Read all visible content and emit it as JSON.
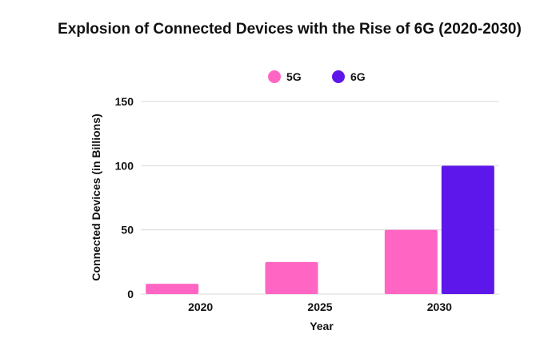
{
  "chart_data": {
    "type": "bar",
    "title": "Explosion of Connected Devices with the Rise of 6G (2020-2030)",
    "xlabel": "Year",
    "ylabel": "Connected Devices (in Billions)",
    "categories": [
      "2020",
      "2025",
      "2030"
    ],
    "series": [
      {
        "name": "5G",
        "color": "#ff66c4",
        "values": [
          8,
          25,
          50
        ]
      },
      {
        "name": "6G",
        "color": "#5e17eb",
        "values": [
          0,
          0,
          100
        ]
      }
    ],
    "ylim": [
      0,
      150
    ],
    "yticks": [
      0,
      50,
      100,
      150
    ],
    "grid": true,
    "legend_position": "top"
  }
}
